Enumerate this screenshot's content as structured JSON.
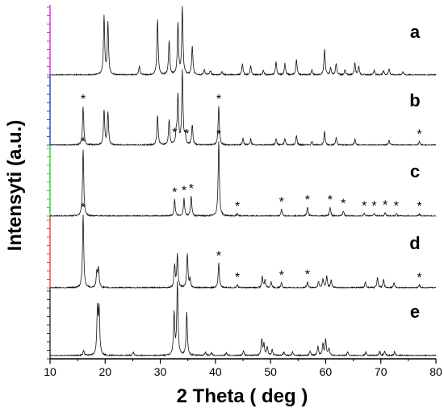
{
  "chart_data": {
    "type": "line",
    "xlabel": "2 Theta ( deg )",
    "ylabel": "Intensyti (a.u.)",
    "xlim": [
      10,
      80
    ],
    "x_ticks": [
      10,
      20,
      30,
      40,
      50,
      60,
      70,
      80
    ],
    "grid": false,
    "legend": "none",
    "series": [
      {
        "label": "a",
        "axis_color": "#cc33cc",
        "peaks": [
          [
            19.8,
            0.82
          ],
          [
            20.5,
            0.74
          ],
          [
            26.2,
            0.13
          ],
          [
            29.5,
            0.78
          ],
          [
            31.6,
            0.48
          ],
          [
            33.2,
            0.72
          ],
          [
            34.0,
            0.94
          ],
          [
            35.8,
            0.4
          ],
          [
            38.0,
            0.08
          ],
          [
            39.1,
            0.06
          ],
          [
            41.2,
            0.05
          ],
          [
            44.9,
            0.16
          ],
          [
            46.4,
            0.13
          ],
          [
            48.7,
            0.07
          ],
          [
            51.0,
            0.18
          ],
          [
            52.6,
            0.16
          ],
          [
            54.7,
            0.22
          ],
          [
            57.5,
            0.07
          ],
          [
            59.8,
            0.36
          ],
          [
            60.9,
            0.1
          ],
          [
            61.9,
            0.16
          ],
          [
            63.5,
            0.07
          ],
          [
            65.3,
            0.17
          ],
          [
            66.0,
            0.12
          ],
          [
            68.8,
            0.07
          ],
          [
            70.5,
            0.06
          ],
          [
            71.5,
            0.09
          ],
          [
            74.0,
            0.05
          ]
        ],
        "asterisks": []
      },
      {
        "label": "b",
        "axis_color": "#2244cc",
        "peaks": [
          [
            16.0,
            0.52
          ],
          [
            19.8,
            0.47
          ],
          [
            20.5,
            0.44
          ],
          [
            29.5,
            0.4
          ],
          [
            31.6,
            0.34
          ],
          [
            32.9,
            0.14
          ],
          [
            33.2,
            0.66
          ],
          [
            34.0,
            1.0
          ],
          [
            34.5,
            0.12
          ],
          [
            35.8,
            0.27
          ],
          [
            40.6,
            0.52
          ],
          [
            45.0,
            0.09
          ],
          [
            46.4,
            0.08
          ],
          [
            51.0,
            0.09
          ],
          [
            52.6,
            0.09
          ],
          [
            54.7,
            0.13
          ],
          [
            57.5,
            0.05
          ],
          [
            59.8,
            0.18
          ],
          [
            61.9,
            0.1
          ],
          [
            65.3,
            0.08
          ],
          [
            71.5,
            0.06
          ],
          [
            77.0,
            0.05
          ]
        ],
        "asterisks": [
          16.0,
          32.6,
          34.8,
          40.6,
          77.0
        ]
      },
      {
        "label": "c",
        "axis_color": "#33cc33",
        "peaks": [
          [
            16.0,
            0.9
          ],
          [
            32.6,
            0.22
          ],
          [
            34.3,
            0.24
          ],
          [
            35.6,
            0.27
          ],
          [
            40.6,
            1.0
          ],
          [
            44.0,
            0.03
          ],
          [
            52.0,
            0.09
          ],
          [
            56.7,
            0.12
          ],
          [
            60.8,
            0.12
          ],
          [
            63.2,
            0.07
          ],
          [
            67.0,
            0.04
          ],
          [
            68.8,
            0.04
          ],
          [
            70.8,
            0.05
          ],
          [
            72.8,
            0.04
          ],
          [
            77.0,
            0.03
          ]
        ],
        "asterisks": [
          16.0,
          32.6,
          34.3,
          35.6,
          40.6,
          44.0,
          52.0,
          56.7,
          60.8,
          63.2,
          67.0,
          68.8,
          70.8,
          72.8,
          77.0
        ]
      },
      {
        "label": "d",
        "axis_color": "#ee4444",
        "peaks": [
          [
            16.0,
            0.98
          ],
          [
            18.5,
            0.22
          ],
          [
            18.8,
            0.25
          ],
          [
            32.6,
            0.3
          ],
          [
            33.1,
            0.44
          ],
          [
            34.9,
            0.46
          ],
          [
            35.4,
            0.11
          ],
          [
            40.6,
            0.33
          ],
          [
            44.0,
            0.04
          ],
          [
            48.5,
            0.15
          ],
          [
            49.0,
            0.1
          ],
          [
            50.1,
            0.08
          ],
          [
            52.0,
            0.07
          ],
          [
            56.7,
            0.08
          ],
          [
            58.7,
            0.08
          ],
          [
            59.5,
            0.12
          ],
          [
            60.2,
            0.16
          ],
          [
            61.0,
            0.1
          ],
          [
            67.2,
            0.08
          ],
          [
            69.4,
            0.14
          ],
          [
            70.5,
            0.11
          ],
          [
            72.4,
            0.07
          ],
          [
            77.0,
            0.04
          ]
        ],
        "asterisks": [
          16.0,
          40.6,
          44.0,
          52.0,
          56.7,
          77.0
        ]
      },
      {
        "label": "e",
        "axis_color": "#333333",
        "peaks": [
          [
            16.1,
            0.07
          ],
          [
            18.6,
            0.62
          ],
          [
            18.9,
            0.62
          ],
          [
            25.1,
            0.05
          ],
          [
            32.5,
            0.58
          ],
          [
            33.1,
            1.0
          ],
          [
            34.8,
            0.6
          ],
          [
            38.2,
            0.05
          ],
          [
            39.3,
            0.04
          ],
          [
            42.0,
            0.04
          ],
          [
            45.1,
            0.07
          ],
          [
            48.4,
            0.22
          ],
          [
            48.8,
            0.16
          ],
          [
            49.4,
            0.12
          ],
          [
            50.3,
            0.08
          ],
          [
            52.4,
            0.05
          ],
          [
            54.0,
            0.05
          ],
          [
            57.2,
            0.06
          ],
          [
            58.6,
            0.12
          ],
          [
            59.5,
            0.16
          ],
          [
            60.0,
            0.22
          ],
          [
            60.6,
            0.1
          ],
          [
            64.0,
            0.05
          ],
          [
            67.3,
            0.05
          ],
          [
            69.8,
            0.06
          ],
          [
            70.7,
            0.06
          ],
          [
            72.5,
            0.05
          ]
        ],
        "asterisks": []
      }
    ]
  }
}
